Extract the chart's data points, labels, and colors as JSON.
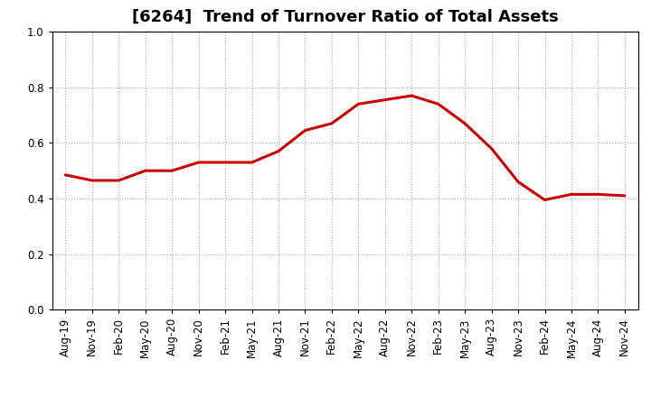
{
  "title": "[6264]  Trend of Turnover Ratio of Total Assets",
  "x_labels": [
    "Aug-19",
    "Nov-19",
    "Feb-20",
    "May-20",
    "Aug-20",
    "Nov-20",
    "Feb-21",
    "May-21",
    "Aug-21",
    "Nov-21",
    "Feb-22",
    "May-22",
    "Aug-22",
    "Nov-22",
    "Feb-23",
    "May-23",
    "Aug-23",
    "Nov-23",
    "Feb-24",
    "May-24",
    "Aug-24",
    "Nov-24"
  ],
  "y_values": [
    0.485,
    0.465,
    0.465,
    0.5,
    0.5,
    0.53,
    0.53,
    0.53,
    0.57,
    0.645,
    0.67,
    0.74,
    0.755,
    0.77,
    0.74,
    0.67,
    0.58,
    0.46,
    0.395,
    0.415,
    0.415,
    0.41
  ],
  "line_color": "#cc0000",
  "line_width": 2.2,
  "ylim": [
    0.0,
    1.0
  ],
  "yticks": [
    0.0,
    0.2,
    0.4,
    0.6,
    0.8,
    1.0
  ],
  "background_color": "#ffffff",
  "plot_bg_color": "#ffffff",
  "grid_color": "#aaaaaa",
  "title_fontsize": 13,
  "tick_fontsize": 8.5
}
